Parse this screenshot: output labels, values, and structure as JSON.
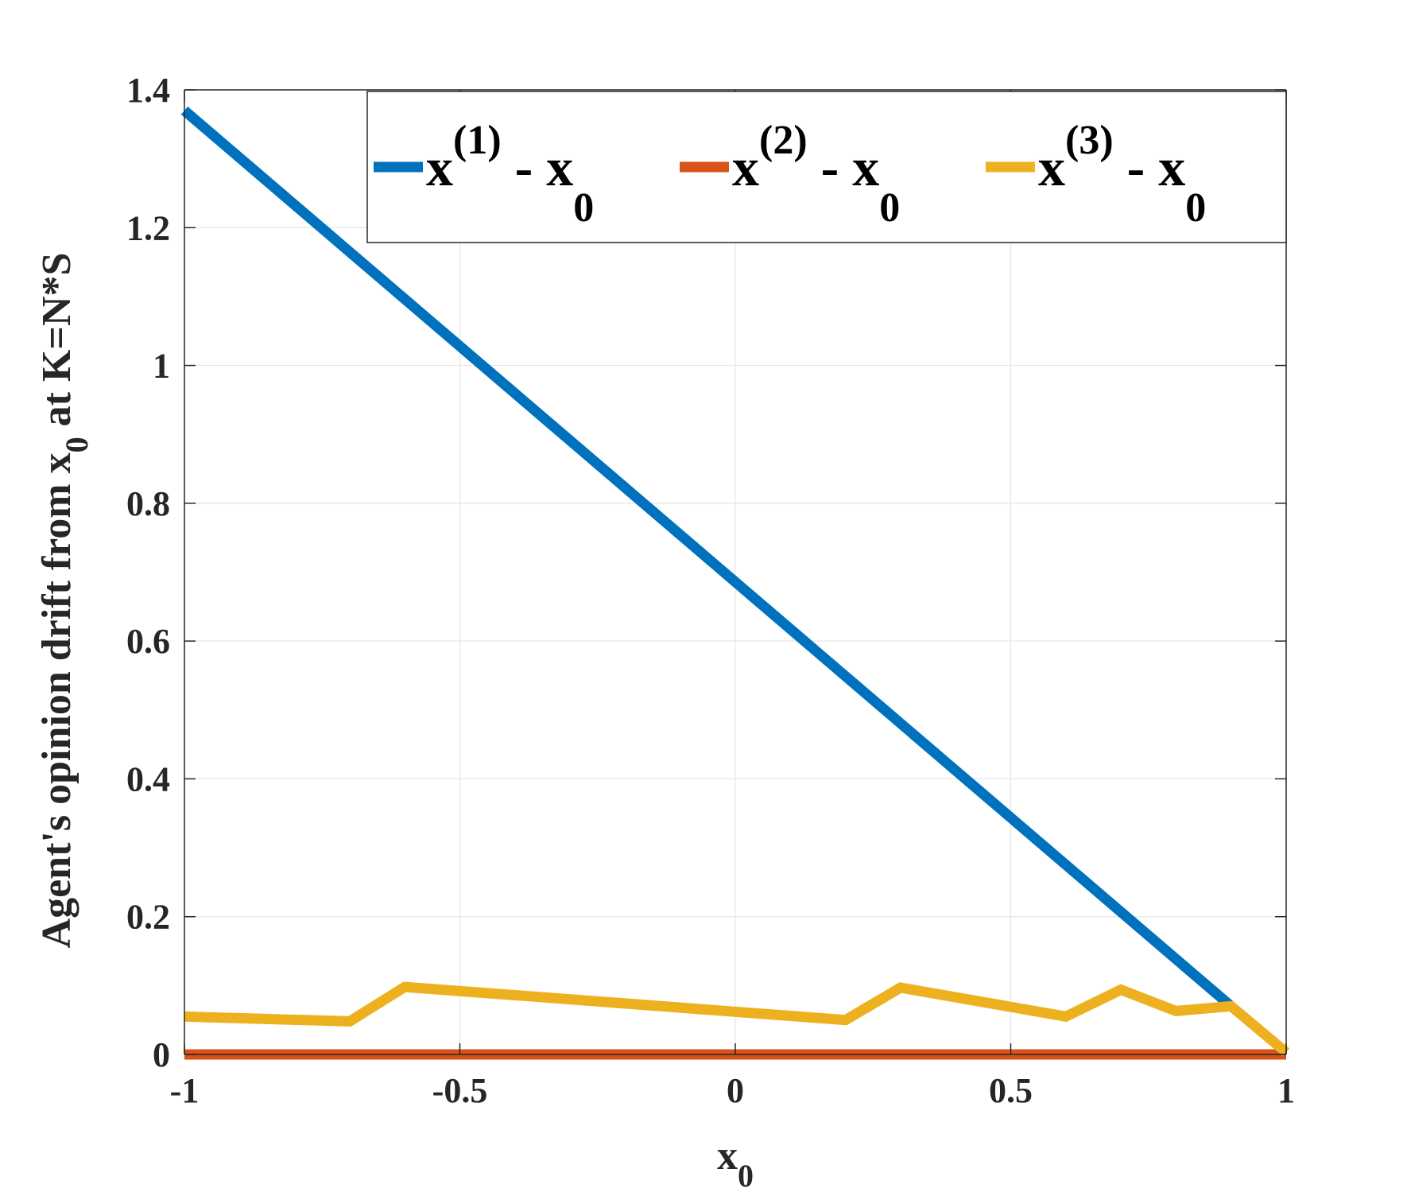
{
  "chart_data": {
    "type": "line",
    "xlabel": {
      "main": "x",
      "sub": "0"
    },
    "ylabel": {
      "pre": "Agent's opinion drift from x",
      "sub": "0",
      "post": " at K=N*S"
    },
    "xlim": [
      -1,
      1
    ],
    "ylim": [
      0,
      1.4
    ],
    "xticks": [
      -1,
      -0.5,
      0,
      0.5,
      1
    ],
    "xtick_labels": [
      "-1",
      "-0.5",
      "0",
      "0.5",
      "1"
    ],
    "yticks": [
      0,
      0.2,
      0.4,
      0.6,
      0.8,
      1,
      1.2,
      1.4
    ],
    "ytick_labels": [
      "0",
      "0.2",
      "0.4",
      "0.6",
      "0.8",
      "1",
      "1.2",
      "1.4"
    ],
    "grid": true,
    "legend_position": "top-right",
    "series": [
      {
        "name": "x(1) - x0",
        "legend": {
          "base": "x",
          "sup": "(1)",
          "mid": " - x",
          "sub": "0"
        },
        "color": "#0072BD",
        "x": [
          -1,
          0.9
        ],
        "y": [
          1.37,
          0.07
        ]
      },
      {
        "name": "x(2) - x0",
        "legend": {
          "base": "x",
          "sup": "(2)",
          "mid": " - x",
          "sub": "0"
        },
        "color": "#D95319",
        "x": [
          -1,
          1
        ],
        "y": [
          0,
          0
        ]
      },
      {
        "name": "x(3) - x0",
        "legend": {
          "base": "x",
          "sup": "(3)",
          "mid": " - x",
          "sub": "0"
        },
        "color": "#EDB120",
        "x": [
          -1,
          -0.7,
          -0.6,
          0.2,
          0.3,
          0.6,
          0.7,
          0.8,
          0.9,
          1.0
        ],
        "y": [
          0.055,
          0.048,
          0.098,
          0.05,
          0.097,
          0.055,
          0.094,
          0.063,
          0.07,
          0.003
        ]
      }
    ]
  }
}
